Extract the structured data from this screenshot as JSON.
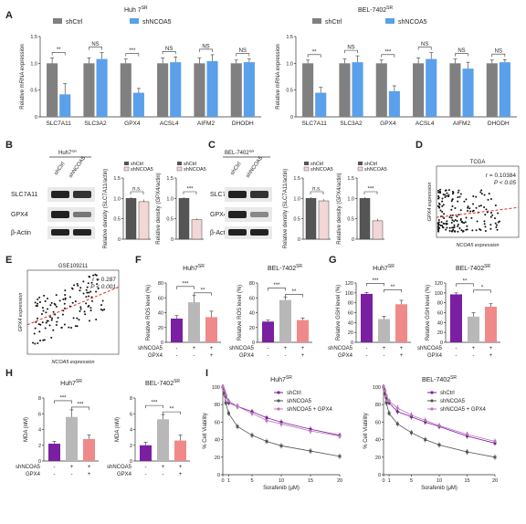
{
  "colors": {
    "shCtrl": "#808080",
    "shNCOA5": "#5aa0ea",
    "purple": "#7a1fa2",
    "gray": "#b8b8b8",
    "pink": "#f08a8a",
    "wb_ctrl": "#555555",
    "wb_kd": "#f3d6d6",
    "sig_line": "#e03020",
    "blue_text": "#2040c0"
  },
  "panels": {
    "A": "A",
    "B": "B",
    "C": "C",
    "D": "D",
    "E": "E",
    "F": "F",
    "G": "G",
    "H": "H",
    "I": "I"
  },
  "legend": {
    "shCtrl": "shCtrl",
    "shNCOA5": "shNCOA5",
    "combo": "shNCOA5 + GPX4"
  },
  "axis_labels": {
    "rel_mrna": "Relative mRNA expression",
    "rel_density_slc": "Relative density (SLC7A11/actin)",
    "rel_density_gpx": "Relative density (GPX4/actin)",
    "gpx4_expr": "GPX4 expression",
    "ncoa5_expr": "NCOA5 expression",
    "ros": "Relative ROS level (%)",
    "gsh": "Relative GSH level (%)",
    "mda": "MDA (nM)",
    "viab": "% Cell Viability",
    "sorafenib": "Sorafenib (μM)"
  },
  "treat": {
    "shNCOA5": "shNCOA5",
    "GPX4": "GPX4"
  },
  "blot": {
    "huh_title": "Huh7SR",
    "bel_title": "BEL-7402SR",
    "lane_ctrl": "shCtrl",
    "lane_kd": "shNCOA5",
    "rows": [
      "SLC7A11",
      "GPX4",
      "β-Actin"
    ]
  },
  "tcga": {
    "title": "TCGA",
    "r": "r = 0.10384",
    "p": "P < 0.05"
  },
  "geo": {
    "title": "GSE109211",
    "r": "r = 0.287",
    "p": "P < 0.001"
  },
  "chart_data": [
    {
      "panel": "A",
      "type": "bar",
      "title": "Huh 7SR",
      "categories": [
        "SLC7A11",
        "SLC3A2",
        "GPX4",
        "ACSL4",
        "AIFM2",
        "DHODH"
      ],
      "ylim": [
        0,
        1.5
      ],
      "yticks": [
        "0",
        "0.5",
        "1.0",
        "1.5"
      ],
      "ylabel": "Relative mRNA expression",
      "series": [
        {
          "name": "shCtrl",
          "values": [
            1,
            1,
            1,
            1,
            1,
            1
          ],
          "err": [
            0.1,
            0.1,
            0.08,
            0.1,
            0.1,
            0.06
          ]
        },
        {
          "name": "shNCOA5",
          "values": [
            0.42,
            1.08,
            0.45,
            1.02,
            1.04,
            1.02
          ],
          "err": [
            0.2,
            0.12,
            0.08,
            0.1,
            0.12,
            0.06
          ]
        }
      ],
      "sig": [
        "**",
        "NS",
        "***",
        "NS",
        "NS",
        "NS"
      ]
    },
    {
      "panel": "A",
      "type": "bar",
      "title": "BEL-7402SR",
      "categories": [
        "SLC7A11",
        "SLC3A2",
        "GPX4",
        "ACSL4",
        "AIFM2",
        "DHODH"
      ],
      "ylim": [
        0,
        1.5
      ],
      "yticks": [
        "0",
        "0.5",
        "1.0",
        "1.5"
      ],
      "ylabel": "Relative mRNA expression",
      "series": [
        {
          "name": "shCtrl",
          "values": [
            1,
            1,
            1,
            1,
            1,
            1
          ],
          "err": [
            0.06,
            0.08,
            0.06,
            0.1,
            0.08,
            0.06
          ]
        },
        {
          "name": "shNCOA5",
          "values": [
            0.45,
            1.02,
            0.48,
            1.08,
            0.9,
            1.02
          ],
          "err": [
            0.1,
            0.12,
            0.1,
            0.12,
            0.12,
            0.05
          ]
        }
      ],
      "sig": [
        "**",
        "NS",
        "***",
        "NS",
        "NS",
        "NS"
      ]
    },
    {
      "panel": "B",
      "type": "bar",
      "ylabel": "Relative density (SLC7A11/actin)",
      "ylim": [
        0,
        1.5
      ],
      "yticks": [
        "0",
        "0.5",
        "1.0",
        "1.5"
      ],
      "categories": [
        "shCtrl",
        "shNCOA5"
      ],
      "values": [
        1.0,
        0.92
      ],
      "err": [
        0.03,
        0.05
      ],
      "sig": "n.s."
    },
    {
      "panel": "B",
      "type": "bar",
      "ylabel": "Relative density (GPX4/actin)",
      "ylim": [
        0,
        1.5
      ],
      "yticks": [
        "0",
        "0.5",
        "1.0",
        "1.5"
      ],
      "categories": [
        "shCtrl",
        "shNCOA5"
      ],
      "values": [
        1.0,
        0.48
      ],
      "err": [
        0.03,
        0.03
      ],
      "sig": "***"
    },
    {
      "panel": "C",
      "type": "bar",
      "ylabel": "Relative density (SLC7A11/actin)",
      "ylim": [
        0,
        1.5
      ],
      "yticks": [
        "0",
        "0.5",
        "1.0",
        "1.5"
      ],
      "categories": [
        "shCtrl",
        "shNCOA5"
      ],
      "values": [
        1.0,
        0.94
      ],
      "err": [
        0.03,
        0.04
      ],
      "sig": "n.s."
    },
    {
      "panel": "C",
      "type": "bar",
      "ylabel": "Relative density (GPX4/actin)",
      "ylim": [
        0,
        1.5
      ],
      "yticks": [
        "0",
        "0.5",
        "1.0",
        "1.5"
      ],
      "categories": [
        "shCtrl",
        "shNCOA5"
      ],
      "values": [
        1.0,
        0.45
      ],
      "err": [
        0.03,
        0.05
      ],
      "sig": "***"
    },
    {
      "panel": "F",
      "type": "bar",
      "title": "Huh7SR",
      "ylabel": "Relative ROS level (%)",
      "ylim": [
        0,
        80
      ],
      "yticks": [
        "0",
        "20",
        "40",
        "60",
        "80"
      ],
      "shNCOA5": [
        "-",
        "+",
        "+"
      ],
      "GPX4": [
        "-",
        "-",
        "+"
      ],
      "values": [
        32,
        54,
        34
      ],
      "err": [
        4,
        9,
        8
      ],
      "sig": [
        "***",
        "**"
      ]
    },
    {
      "panel": "F",
      "type": "bar",
      "title": "BEL-7402SR",
      "ylabel": "Relative ROS level (%)",
      "ylim": [
        0,
        80
      ],
      "yticks": [
        "0",
        "20",
        "40",
        "60",
        "80"
      ],
      "shNCOA5": [
        "-",
        "+",
        "+"
      ],
      "GPX4": [
        "-",
        "-",
        "+"
      ],
      "values": [
        28,
        57,
        30
      ],
      "err": [
        2,
        4,
        3
      ],
      "sig": [
        "***",
        "**"
      ]
    },
    {
      "panel": "G",
      "type": "bar",
      "title": "Huh7SR",
      "ylabel": "Relative GSH level (%)",
      "ylim": [
        0,
        120
      ],
      "yticks": [
        "0",
        "20",
        "40",
        "60",
        "80",
        "100",
        "120"
      ],
      "shNCOA5": [
        "-",
        "+",
        "+"
      ],
      "GPX4": [
        "-",
        "-",
        "+"
      ],
      "values": [
        98,
        47,
        77
      ],
      "err": [
        3,
        6,
        8
      ],
      "sig": [
        "***",
        "**"
      ]
    },
    {
      "panel": "G",
      "type": "bar",
      "title": "BEL-7402SR",
      "ylabel": "Relative GSH level (%)",
      "ylim": [
        0,
        120
      ],
      "yticks": [
        "0",
        "20",
        "40",
        "60",
        "80",
        "100",
        "120"
      ],
      "shNCOA5": [
        "-",
        "+",
        "+"
      ],
      "GPX4": [
        "-",
        "-",
        "+"
      ],
      "values": [
        97,
        52,
        72
      ],
      "err": [
        3,
        8,
        6
      ],
      "sig": [
        "**",
        "*"
      ]
    },
    {
      "panel": "H",
      "type": "bar",
      "title": "Huh7SR",
      "ylabel": "MDA (nM)",
      "ylim": [
        0,
        8
      ],
      "yticks": [
        "0",
        "2",
        "4",
        "6",
        "8"
      ],
      "shNCOA5": [
        "-",
        "+",
        "+"
      ],
      "GPX4": [
        "-",
        "-",
        "+"
      ],
      "values": [
        2.2,
        5.6,
        2.8
      ],
      "err": [
        0.3,
        0.9,
        0.5
      ],
      "sig": [
        "***",
        "***"
      ]
    },
    {
      "panel": "H",
      "type": "bar",
      "title": "BEL-7402SR",
      "ylabel": "MDA (nM)",
      "ylim": [
        0,
        8
      ],
      "yticks": [
        "0",
        "2",
        "4",
        "6",
        "8"
      ],
      "shNCOA5": [
        "-",
        "+",
        "+"
      ],
      "GPX4": [
        "-",
        "-",
        "+"
      ],
      "values": [
        2.0,
        5.3,
        2.6
      ],
      "err": [
        0.4,
        0.6,
        0.7
      ],
      "sig": [
        "***",
        "**"
      ]
    },
    {
      "panel": "I",
      "type": "line",
      "title": "Huh7SR",
      "xlabel": "Sorafenib (μM)",
      "ylabel": "% Cell Viability",
      "x": [
        0,
        0.25,
        0.5,
        1,
        2.5,
        5,
        7.5,
        10,
        15,
        20
      ],
      "xticks": [
        "0",
        "1",
        "5",
        "10",
        "15",
        "20"
      ],
      "ylim": [
        0,
        100
      ],
      "yticks": [
        "0",
        "20",
        "40",
        "60",
        "80",
        "100"
      ],
      "series": [
        {
          "name": "shCtrl",
          "values": [
            100,
            95,
            90,
            82,
            78,
            72,
            65,
            60,
            52,
            45
          ]
        },
        {
          "name": "shNCOA5",
          "values": [
            100,
            92,
            82,
            70,
            55,
            45,
            38,
            33,
            27,
            21
          ]
        },
        {
          "name": "shNCOA5 + GPX4",
          "values": [
            100,
            96,
            91,
            84,
            78,
            70,
            62,
            58,
            50,
            44
          ]
        }
      ]
    },
    {
      "panel": "I",
      "type": "line",
      "title": "BEL-7402SR",
      "xlabel": "Sorafenib (μM)",
      "ylabel": "% Cell Viability",
      "x": [
        0,
        0.25,
        0.5,
        1,
        2.5,
        5,
        7.5,
        10,
        15,
        20
      ],
      "xticks": [
        "0",
        "1",
        "5",
        "10",
        "15",
        "20"
      ],
      "ylim": [
        0,
        100
      ],
      "yticks": [
        "0",
        "20",
        "40",
        "60",
        "80",
        "100"
      ],
      "series": [
        {
          "name": "shCtrl",
          "values": [
            100,
            96,
            88,
            82,
            72,
            66,
            60,
            55,
            44,
            36
          ]
        },
        {
          "name": "shNCOA5",
          "values": [
            100,
            92,
            82,
            70,
            58,
            48,
            40,
            34,
            26,
            20
          ]
        },
        {
          "name": "shNCOA5 + GPX4",
          "values": [
            100,
            96,
            90,
            84,
            76,
            68,
            62,
            56,
            46,
            38
          ]
        }
      ]
    },
    {
      "panel": "D",
      "type": "scatter",
      "title": "TCGA",
      "xlabel": "NCOA5 expression",
      "ylabel": "GPX4 expression",
      "xlim": [
        0,
        100
      ],
      "ylim": [
        0,
        100
      ],
      "trend": [
        [
          0,
          28
        ],
        [
          100,
          42
        ]
      ]
    },
    {
      "panel": "E",
      "type": "scatter",
      "title": "GSE109211",
      "xlabel": "NCOA5 expression",
      "ylabel": "GPX4 expression",
      "xlim": [
        0,
        100
      ],
      "ylim": [
        0,
        100
      ],
      "trend": [
        [
          0,
          35
        ],
        [
          100,
          80
        ]
      ]
    }
  ]
}
